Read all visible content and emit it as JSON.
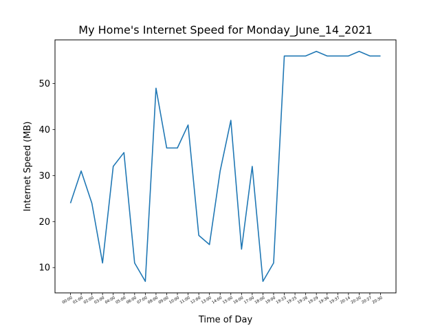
{
  "chart_data": {
    "type": "line",
    "title": "My Home's Internet Speed for Monday_June_14_2021",
    "xlabel": "Time of Day",
    "ylabel": "Internet Speed (MB)",
    "categories": [
      "00:00",
      "01:00",
      "02:00",
      "03:00",
      "04:00",
      "05:00",
      "06:00",
      "07:00",
      "08:00",
      "09:00",
      "10:00",
      "11:00",
      "12:00",
      "13:00",
      "14:00",
      "15:00",
      "16:00",
      "17:00",
      "18:00",
      "19:00",
      "19:23",
      "19:25",
      "19:28",
      "19:29",
      "19:36",
      "19:37",
      "20:14",
      "20:20",
      "20:27",
      "20:30"
    ],
    "series": [
      {
        "color": "#1f77b4",
        "values": [
          24,
          31,
          24,
          11,
          32,
          35,
          11,
          7,
          49,
          36,
          36,
          41,
          17,
          15,
          31,
          42,
          14,
          32,
          7,
          11,
          56,
          56,
          56,
          57,
          56,
          56,
          56,
          57,
          56,
          56
        ]
      }
    ],
    "yticks": [
      10,
      20,
      30,
      40,
      50
    ],
    "ylim": [
      4.5,
      59.5
    ],
    "grid": false
  }
}
